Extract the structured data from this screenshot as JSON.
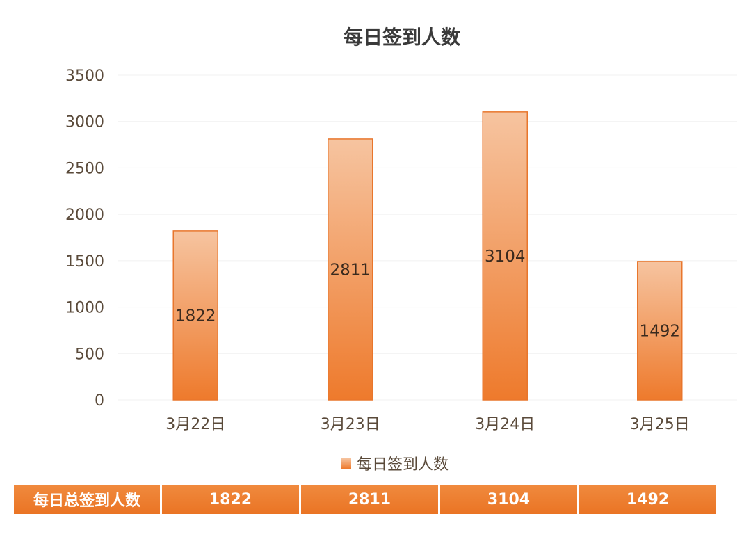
{
  "chart_data": {
    "type": "bar",
    "title": "每日签到人数",
    "categories": [
      "3月22日",
      "3月23日",
      "3月24日",
      "3月25日"
    ],
    "series": [
      {
        "name": "每日签到人数",
        "values": [
          1822,
          2811,
          3104,
          1492
        ]
      }
    ],
    "ylim": [
      0,
      3500
    ],
    "yticks": [
      0,
      500,
      1000,
      1500,
      2000,
      2500,
      3000,
      3500
    ],
    "grid": true,
    "legend_position": "bottom",
    "colors": {
      "bar_top": "#f6c4a0",
      "bar_bottom": "#ee7a2c",
      "bar_stroke": "#e8762c",
      "grid": "#f0f0f0",
      "axis_text": "#5a4a3a",
      "title_text": "#3a3a3a"
    }
  },
  "summary_table": {
    "header": "每日总签到人数",
    "values": [
      "1822",
      "2811",
      "3104",
      "1492"
    ]
  }
}
